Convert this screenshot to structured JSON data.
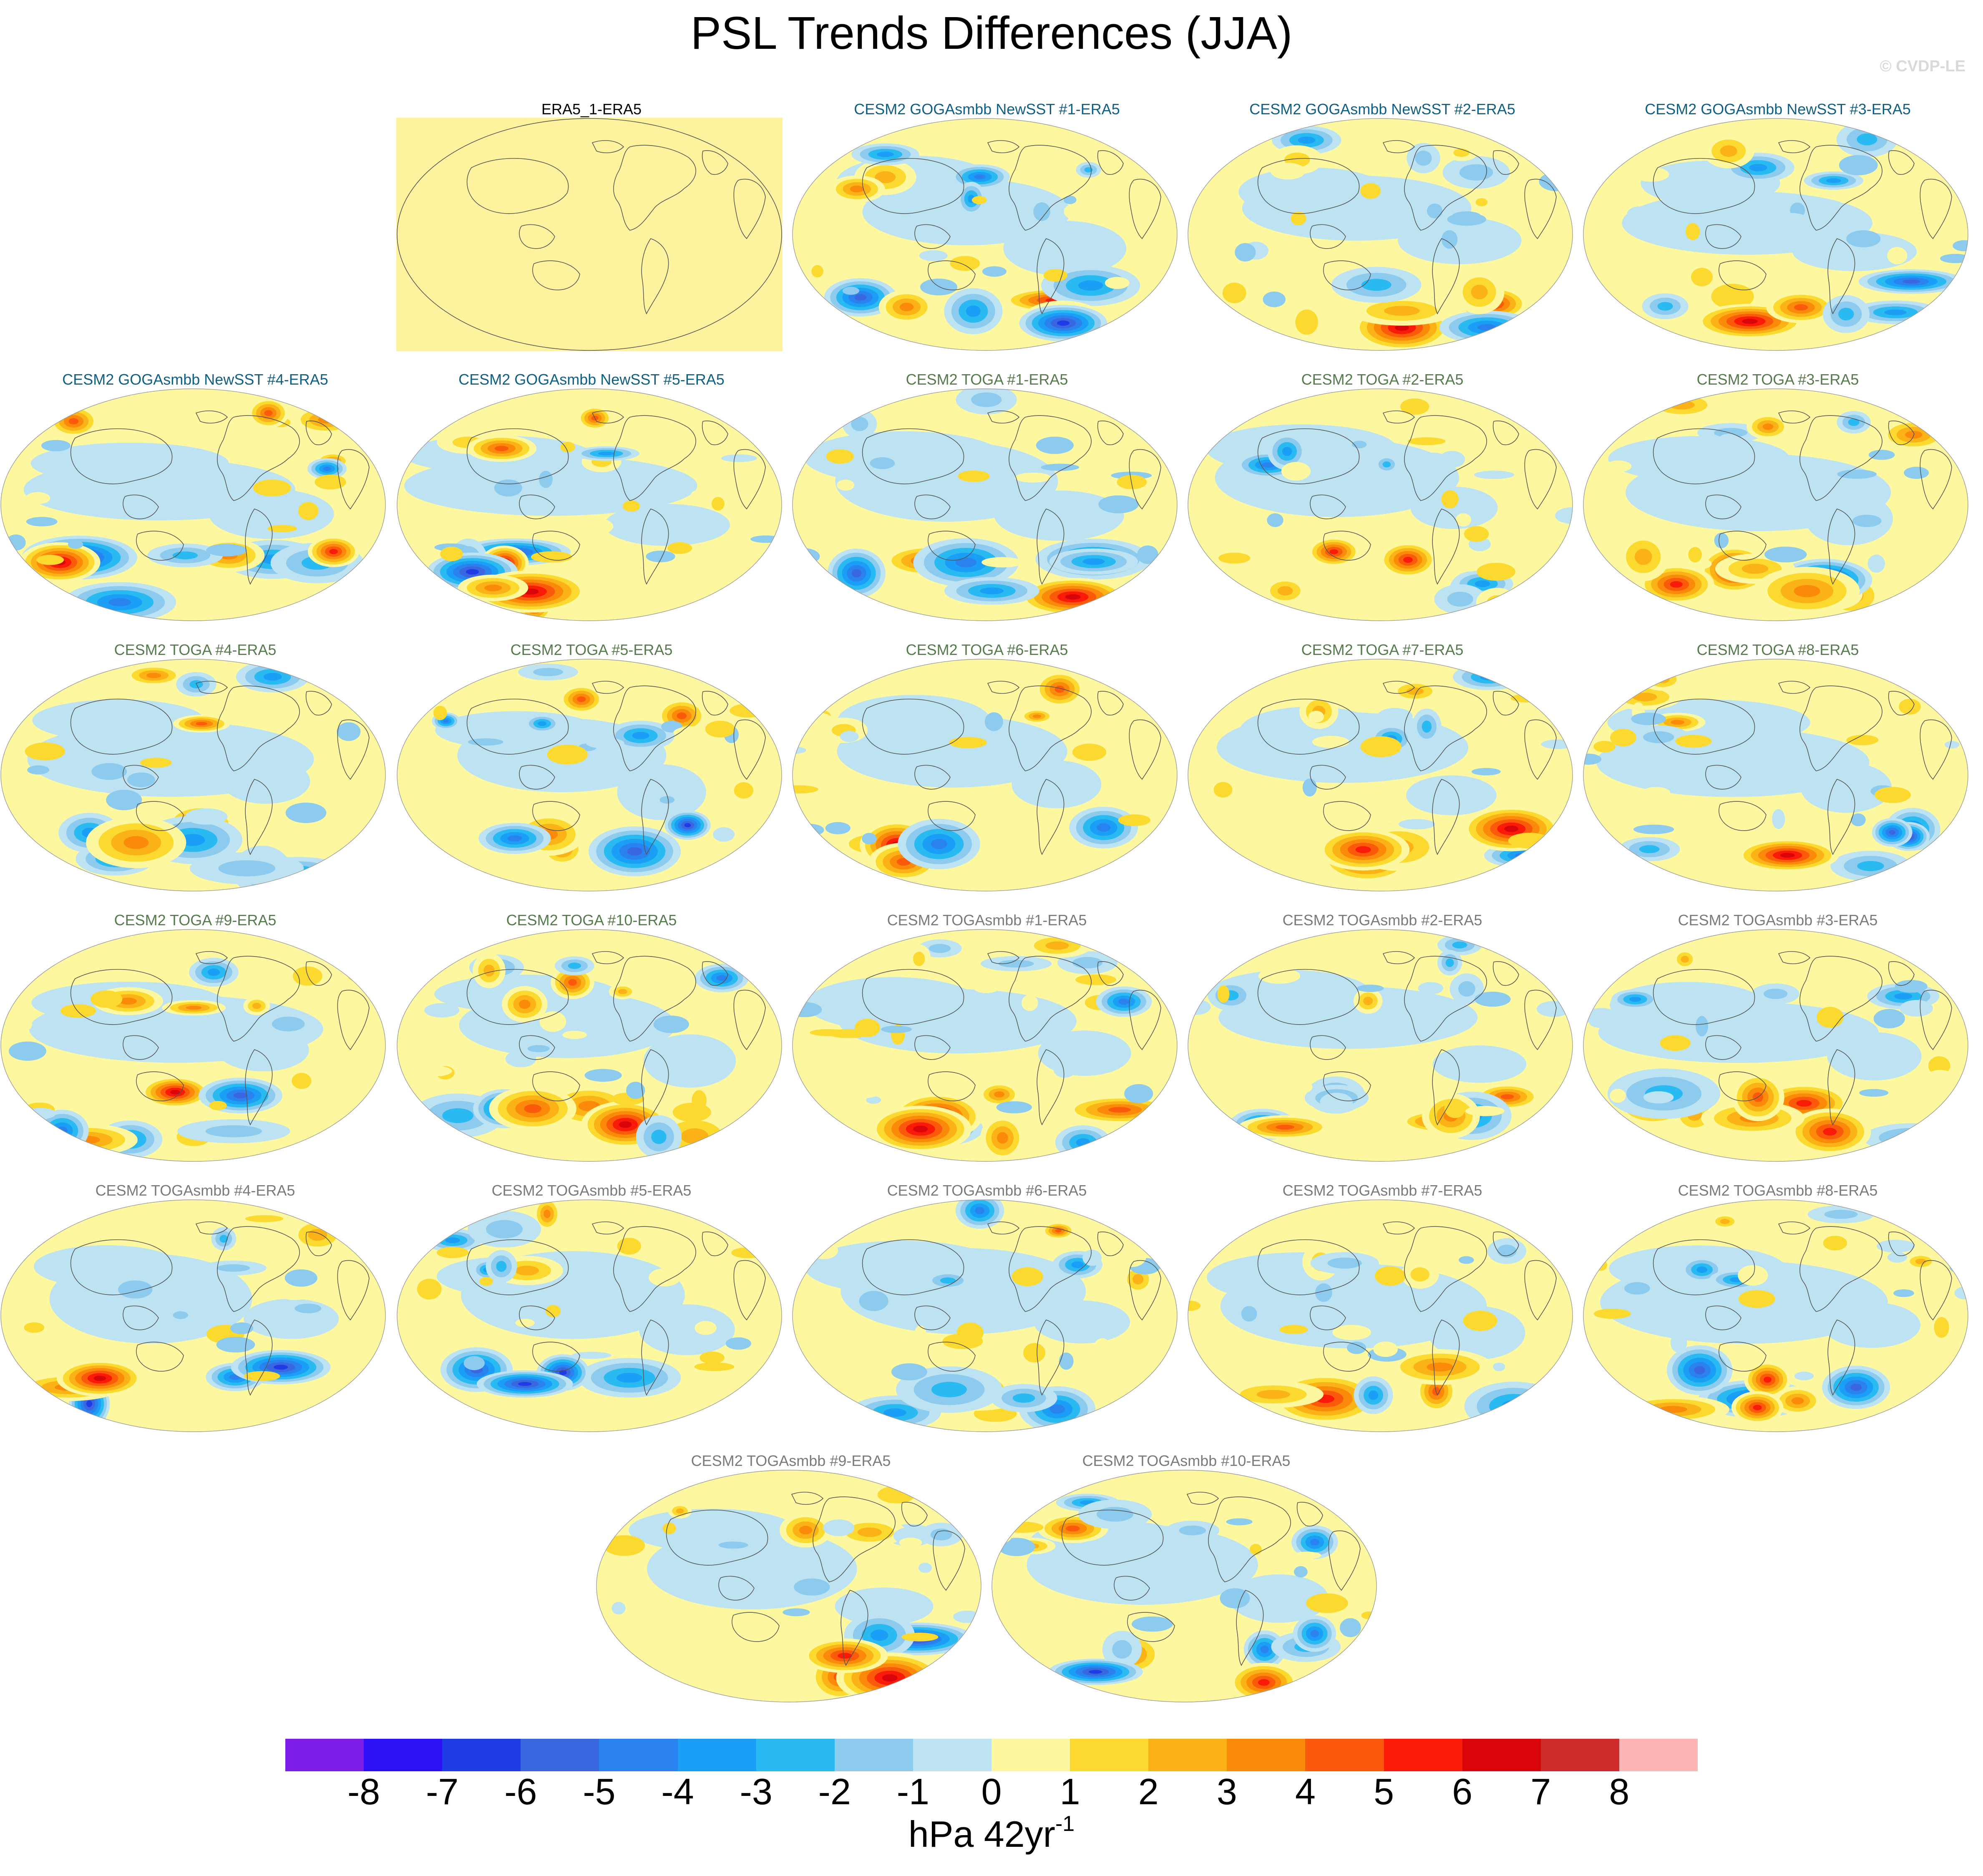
{
  "title": "PSL Trends Differences (JJA)",
  "watermark": "© CVDP-LE",
  "colors": {
    "levels": [
      "#7d1ee8",
      "#2d10f5",
      "#1f3be6",
      "#3a67e0",
      "#2a82ee",
      "#1b9ef6",
      "#29baf2",
      "#8ccbee",
      "#bde3f3",
      "#fdf8a0",
      "#fbd92f",
      "#fbb217",
      "#fb8a0b",
      "#fb5a0a",
      "#fa1a08",
      "#d9050a",
      "#ce2d2b",
      "#fdb5b5"
    ],
    "era5": "#fdf39e",
    "title_era5": "#000000",
    "title_goga": "#0f5f83",
    "title_toga": "#557a4b",
    "title_togasmbb": "#7a7a7a",
    "coast": "#555555"
  },
  "panels": [
    {
      "label": "ERA5_1-ERA5",
      "kind": "era5",
      "seed": 0
    },
    {
      "label": "CESM2 GOGAsmbb NewSST #1-ERA5",
      "kind": "goga",
      "seed": 11
    },
    {
      "label": "CESM2 GOGAsmbb NewSST #2-ERA5",
      "kind": "goga",
      "seed": 12
    },
    {
      "label": "CESM2 GOGAsmbb NewSST #3-ERA5",
      "kind": "goga",
      "seed": 13
    },
    {
      "label": "CESM2 GOGAsmbb NewSST #4-ERA5",
      "kind": "goga",
      "seed": 14
    },
    {
      "label": "CESM2 GOGAsmbb NewSST #5-ERA5",
      "kind": "goga",
      "seed": 15
    },
    {
      "label": "CESM2 TOGA #1-ERA5",
      "kind": "toga",
      "seed": 21
    },
    {
      "label": "CESM2 TOGA #2-ERA5",
      "kind": "toga",
      "seed": 22
    },
    {
      "label": "CESM2 TOGA #3-ERA5",
      "kind": "toga",
      "seed": 23
    },
    {
      "label": "CESM2 TOGA #4-ERA5",
      "kind": "toga",
      "seed": 24
    },
    {
      "label": "CESM2 TOGA #5-ERA5",
      "kind": "toga",
      "seed": 25
    },
    {
      "label": "CESM2 TOGA #6-ERA5",
      "kind": "toga",
      "seed": 26
    },
    {
      "label": "CESM2 TOGA #7-ERA5",
      "kind": "toga",
      "seed": 27
    },
    {
      "label": "CESM2 TOGA #8-ERA5",
      "kind": "toga",
      "seed": 28
    },
    {
      "label": "CESM2 TOGA #9-ERA5",
      "kind": "toga",
      "seed": 29
    },
    {
      "label": "CESM2 TOGA #10-ERA5",
      "kind": "toga",
      "seed": 30
    },
    {
      "label": "CESM2 TOGAsmbb #1-ERA5",
      "kind": "togasmbb",
      "seed": 31
    },
    {
      "label": "CESM2 TOGAsmbb #2-ERA5",
      "kind": "togasmbb",
      "seed": 32
    },
    {
      "label": "CESM2 TOGAsmbb #3-ERA5",
      "kind": "togasmbb",
      "seed": 33
    },
    {
      "label": "CESM2 TOGAsmbb #4-ERA5",
      "kind": "togasmbb",
      "seed": 34
    },
    {
      "label": "CESM2 TOGAsmbb #5-ERA5",
      "kind": "togasmbb",
      "seed": 35
    },
    {
      "label": "CESM2 TOGAsmbb #6-ERA5",
      "kind": "togasmbb",
      "seed": 36
    },
    {
      "label": "CESM2 TOGAsmbb #7-ERA5",
      "kind": "togasmbb",
      "seed": 37
    },
    {
      "label": "CESM2 TOGAsmbb #8-ERA5",
      "kind": "togasmbb",
      "seed": 38
    },
    {
      "label": "CESM2 TOGAsmbb #9-ERA5",
      "kind": "togasmbb",
      "seed": 39
    },
    {
      "label": "CESM2 TOGAsmbb #10-ERA5",
      "kind": "togasmbb",
      "seed": 40
    }
  ],
  "colorbar": {
    "ticks": [
      "-8",
      "-7",
      "-6",
      "-5",
      "-4",
      "-3",
      "-2",
      "-1",
      "0",
      "1",
      "2",
      "3",
      "4",
      "5",
      "6",
      "7",
      "8"
    ],
    "units_main": "hPa 42yr",
    "units_exp": "-1"
  }
}
